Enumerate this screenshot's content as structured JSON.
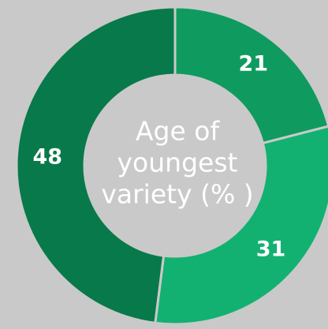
{
  "chart_data": {
    "type": "donut",
    "title": [
      "Age of",
      "youngest",
      "variety (% )"
    ],
    "categories": [
      null,
      null,
      null
    ],
    "values": [
      21,
      31,
      48
    ],
    "colors": [
      "#0f9b60",
      "#12b172",
      "#08794a"
    ],
    "separator_color": "#c9c9c9",
    "background": "#c9c9c9"
  }
}
